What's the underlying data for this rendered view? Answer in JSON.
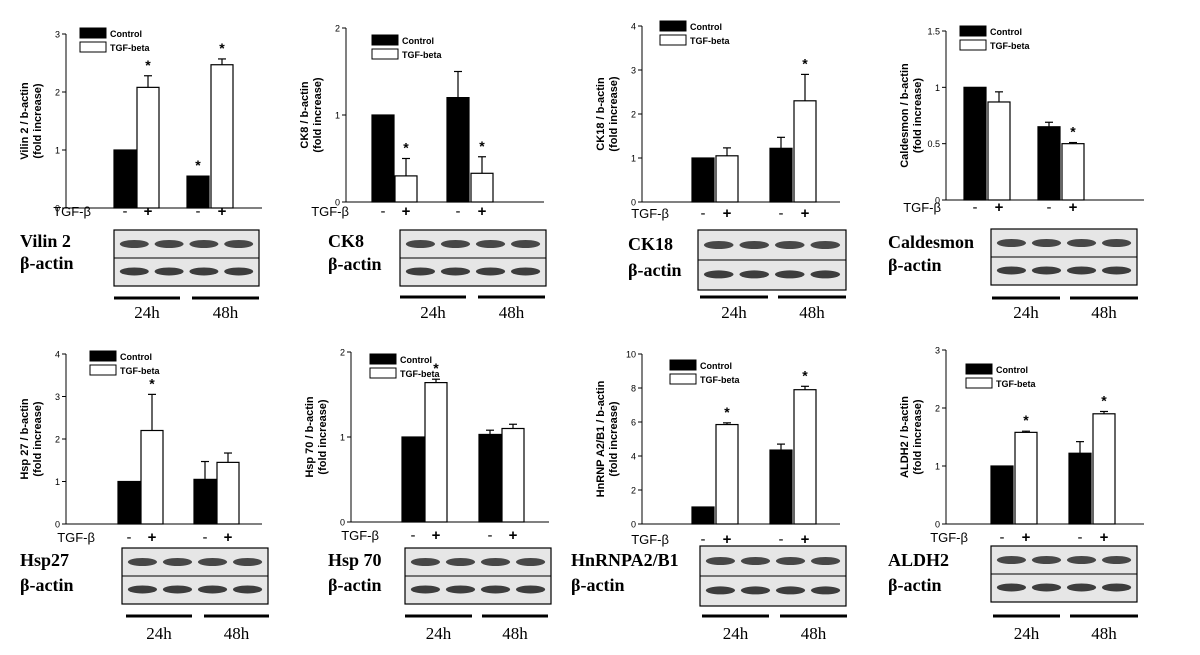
{
  "treatment_label": "TGF-β",
  "treatment_signs": [
    "-",
    "+",
    "-",
    "+"
  ],
  "loading_control": "β-actin",
  "timepoints": [
    "24h",
    "48h"
  ],
  "colors": {
    "control_bar": "#000000",
    "tgf_bar": "#ffffff",
    "axis": "#000000",
    "blot_bg": "#e6e6e6",
    "band": "#2a2a2a"
  },
  "chart_data": [
    {
      "type": "bar",
      "title": "",
      "protein": "Vilin 2",
      "ylabel": "Vilin 2 / b-actin\n(fold increase)",
      "ylim": [
        0,
        3
      ],
      "yticks": [
        0,
        1,
        2,
        3
      ],
      "categories": [
        "24h",
        "48h"
      ],
      "legend_position": "top-right",
      "grid": false,
      "series": [
        {
          "name": "Control",
          "values": [
            1.0,
            0.55
          ],
          "errors": [
            0,
            0
          ],
          "significant": [
            false,
            true
          ]
        },
        {
          "name": "TGF-beta",
          "values": [
            2.08,
            2.47
          ],
          "errors": [
            0.2,
            0.1
          ],
          "significant": [
            true,
            true
          ]
        }
      ]
    },
    {
      "type": "bar",
      "title": "",
      "protein": "CK8",
      "ylabel": "CK8 / b-actin\n(fold increase)",
      "ylim": [
        0,
        2
      ],
      "yticks": [
        0,
        1,
        2
      ],
      "categories": [
        "24h",
        "48h"
      ],
      "legend_position": "top-right",
      "grid": false,
      "series": [
        {
          "name": "Control",
          "values": [
            1.0,
            1.2
          ],
          "errors": [
            0,
            0.3
          ],
          "significant": [
            false,
            false
          ]
        },
        {
          "name": "TGF-beta",
          "values": [
            0.3,
            0.33
          ],
          "errors": [
            0.2,
            0.19
          ],
          "significant": [
            true,
            true
          ]
        }
      ]
    },
    {
      "type": "bar",
      "title": "",
      "protein": "CK18",
      "ylabel": "CK18 / b-actin\n(fold increase)",
      "ylim": [
        0,
        4
      ],
      "yticks": [
        0,
        1,
        2,
        3,
        4
      ],
      "categories": [
        "24h",
        "48h"
      ],
      "legend_position": "top-right",
      "grid": false,
      "series": [
        {
          "name": "Control",
          "values": [
            1.0,
            1.22
          ],
          "errors": [
            0,
            0.25
          ],
          "significant": [
            false,
            false
          ]
        },
        {
          "name": "TGF-beta",
          "values": [
            1.05,
            2.3
          ],
          "errors": [
            0.18,
            0.6
          ],
          "significant": [
            false,
            true
          ]
        }
      ]
    },
    {
      "type": "bar",
      "title": "",
      "protein": "Caldesmon",
      "ylabel": "Caldesmon / b-actin\n(fold increase)",
      "ylim": [
        0,
        1.5
      ],
      "yticks": [
        0,
        0.5,
        1.0,
        1.5
      ],
      "categories": [
        "24h",
        "48h"
      ],
      "legend_position": "top-right",
      "grid": false,
      "series": [
        {
          "name": "Control",
          "values": [
            1.0,
            0.65
          ],
          "errors": [
            0,
            0.04
          ],
          "significant": [
            false,
            false
          ]
        },
        {
          "name": "TGF-beta",
          "values": [
            0.87,
            0.5
          ],
          "errors": [
            0.09,
            0.01
          ],
          "significant": [
            false,
            true
          ]
        }
      ]
    },
    {
      "type": "bar",
      "title": "",
      "protein": "Hsp27",
      "ylabel": "Hsp 27 / b-actin\n(fold increase)",
      "ylim": [
        0,
        4
      ],
      "yticks": [
        0,
        1,
        2,
        3,
        4
      ],
      "categories": [
        "24h",
        "48h"
      ],
      "legend_position": "top-right",
      "grid": false,
      "series": [
        {
          "name": "Control",
          "values": [
            1.0,
            1.05
          ],
          "errors": [
            0,
            0.42
          ],
          "significant": [
            false,
            false
          ]
        },
        {
          "name": "TGF-beta",
          "values": [
            2.2,
            1.45
          ],
          "errors": [
            0.85,
            0.22
          ],
          "significant": [
            true,
            false
          ]
        }
      ]
    },
    {
      "type": "bar",
      "title": "",
      "protein": "Hsp 70",
      "ylabel": "Hsp 70 / b-actin\n(fold increase)",
      "ylim": [
        0,
        2
      ],
      "yticks": [
        0,
        1,
        2
      ],
      "categories": [
        "24h",
        "48h"
      ],
      "legend_position": "top-right",
      "grid": false,
      "series": [
        {
          "name": "Control",
          "values": [
            1.0,
            1.03
          ],
          "errors": [
            0,
            0.05
          ],
          "significant": [
            false,
            false
          ]
        },
        {
          "name": "TGF-beta",
          "values": [
            1.64,
            1.1
          ],
          "errors": [
            0.04,
            0.05
          ],
          "significant": [
            true,
            false
          ]
        }
      ]
    },
    {
      "type": "bar",
      "title": "",
      "protein": "HnRNPA2/B1",
      "ylabel": "HnRNP A2/B1 / b-actin\n(fold increase)",
      "ylim": [
        0,
        10
      ],
      "yticks": [
        0,
        2,
        4,
        6,
        8,
        10
      ],
      "categories": [
        "24h",
        "48h"
      ],
      "legend_position": "top-right",
      "grid": false,
      "series": [
        {
          "name": "Control",
          "values": [
            1.0,
            4.35
          ],
          "errors": [
            0,
            0.35
          ],
          "significant": [
            false,
            false
          ]
        },
        {
          "name": "TGF-beta",
          "values": [
            5.85,
            7.9
          ],
          "errors": [
            0.1,
            0.2
          ],
          "significant": [
            true,
            true
          ]
        }
      ]
    },
    {
      "type": "bar",
      "title": "",
      "protein": "ALDH2",
      "ylabel": "ALDH2 / b-actin\n(fold increase)",
      "ylim": [
        0,
        3
      ],
      "yticks": [
        0,
        1,
        2,
        3
      ],
      "categories": [
        "24h",
        "48h"
      ],
      "legend_position": "top-right",
      "grid": false,
      "series": [
        {
          "name": "Control",
          "values": [
            1.0,
            1.22
          ],
          "errors": [
            0,
            0.2
          ],
          "significant": [
            false,
            false
          ]
        },
        {
          "name": "TGF-beta",
          "values": [
            1.58,
            1.9
          ],
          "errors": [
            0.02,
            0.04
          ],
          "significant": [
            true,
            true
          ]
        }
      ]
    }
  ]
}
